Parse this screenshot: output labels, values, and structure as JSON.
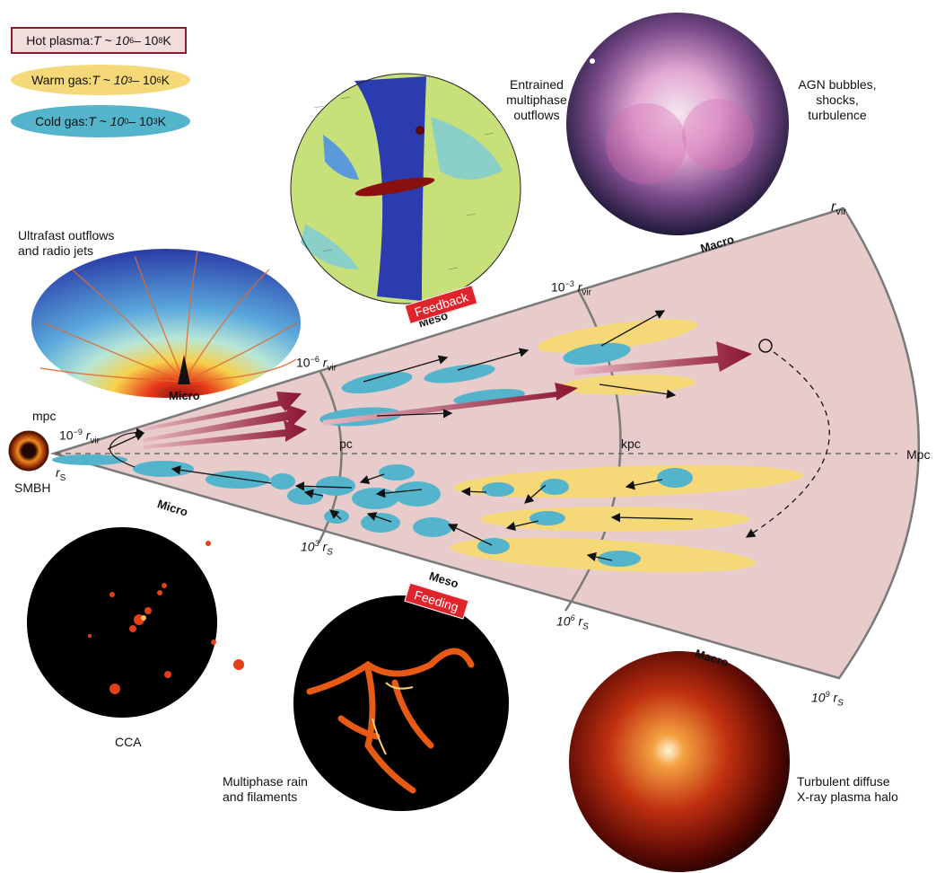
{
  "legend": {
    "hot": "Hot plasma: T ~ 10^6 – 10^8 K",
    "hot_prefix": "Hot plasma: ",
    "warm_prefix": "Warm gas: ",
    "cold_prefix": "Cold gas: ",
    "hot_range": "T ~ 10",
    "hot_e1": "6",
    "hot_mid": " – 10",
    "hot_e2": "8",
    "hot_unit": " K",
    "warm_range": "T ~ 10",
    "warm_e1": "3",
    "warm_mid": " – 10",
    "warm_e2": "6",
    "warm_unit": " K",
    "cold_range": "T ~ 10",
    "cold_e1": "0",
    "cold_mid": " – 10",
    "cold_e2": "3",
    "cold_unit": " K"
  },
  "panels": {
    "ultrafast": "Ultrafast outflows\nand radio jets",
    "entrained": "Entrained\nmultiphase\noutflows",
    "agn": "AGN bubbles,\nshocks,\nturbulence",
    "cca": "CCA",
    "rain": "Multiphase rain\nand filaments",
    "halo": "Turbulent diffuse\nX-ray plasma halo"
  },
  "scales": {
    "micro": "Micro",
    "meso": "Meso",
    "macro": "Macro",
    "feedback": "Feedback",
    "feeding": "Feeding"
  },
  "axis": {
    "mpc": "mpc",
    "pc": "pc",
    "kpc": "kpc",
    "Mpc": "Mpc",
    "smbh": "SMBH",
    "rs": "r",
    "rs_sub": "S",
    "rvir": "r",
    "rvir_sub": "vir",
    "e_m9": "−9",
    "e_m6": "−6",
    "e_m3": "−3",
    "e_3": "3",
    "e_6": "6",
    "e_9": "9",
    "ten": "10"
  },
  "colors": {
    "wedge": "#e8cccc",
    "hot_border": "#8a1c32",
    "warm": "#f5d878",
    "cold": "#53b4cc",
    "arrow": "#8a1c32",
    "tag": "#e0242c"
  }
}
